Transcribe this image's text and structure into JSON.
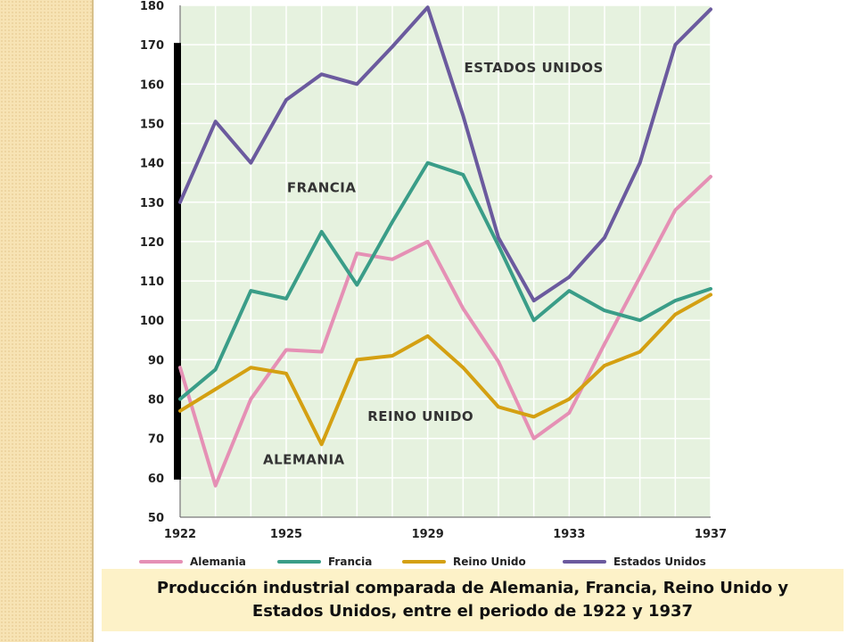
{
  "chart_data": {
    "type": "line",
    "title": "",
    "xlabel": "",
    "ylabel": "",
    "x": [
      1922,
      1923,
      1924,
      1925,
      1926,
      1927,
      1928,
      1929,
      1930,
      1931,
      1932,
      1933,
      1934,
      1935,
      1936,
      1937
    ],
    "x_tick_labels": [
      "1922",
      "1925",
      "1929",
      "1933",
      "1937"
    ],
    "x_ticks": [
      1922,
      1925,
      1929,
      1933,
      1937
    ],
    "y_ticks": [
      50,
      60,
      70,
      80,
      90,
      100,
      110,
      120,
      130,
      140,
      150,
      160,
      170,
      180
    ],
    "xlim": [
      1922,
      1937
    ],
    "ylim": [
      50,
      180
    ],
    "grid": true,
    "legend_position": "bottom",
    "series": [
      {
        "name": "Alemania",
        "color": "#e590b5",
        "values": [
          88,
          58,
          80,
          92.5,
          92,
          117,
          115.5,
          120,
          103,
          89.5,
          70,
          76.5,
          94,
          111,
          128,
          136.5
        ]
      },
      {
        "name": "Francia",
        "color": "#3a9d88",
        "values": [
          80,
          87.5,
          107.5,
          105.5,
          122.5,
          109,
          125,
          140,
          137,
          119,
          100,
          107.5,
          102.5,
          100,
          105,
          108
        ]
      },
      {
        "name": "Reino Unido",
        "color": "#d4a012",
        "values": [
          77,
          82.5,
          88,
          86.5,
          68.5,
          90,
          91,
          96,
          88,
          78,
          75.5,
          80,
          88.5,
          92,
          101.5,
          106.5
        ]
      },
      {
        "name": "Estados Unidos",
        "color": "#6b5a9e",
        "values": [
          130,
          150.5,
          140,
          156,
          162.5,
          160,
          169.5,
          179.5,
          152,
          121,
          105,
          111,
          121,
          140,
          170,
          179
        ]
      }
    ],
    "annotations": [
      {
        "text": "ESTADOS UNIDOS",
        "x": 1932,
        "y": 163
      },
      {
        "text": "FRANCIA",
        "x": 1926,
        "y": 132.5
      },
      {
        "text": "REINO UNIDO",
        "x": 1928.8,
        "y": 74.5
      },
      {
        "text": "ALEMANIA",
        "x": 1925.5,
        "y": 63.5
      }
    ]
  },
  "caption": {
    "line1": "Producción industrial comparada de Alemania, Francia, Reino Unido y",
    "line2": "Estados Unidos, entre el periodo de 1922 y 1937"
  }
}
